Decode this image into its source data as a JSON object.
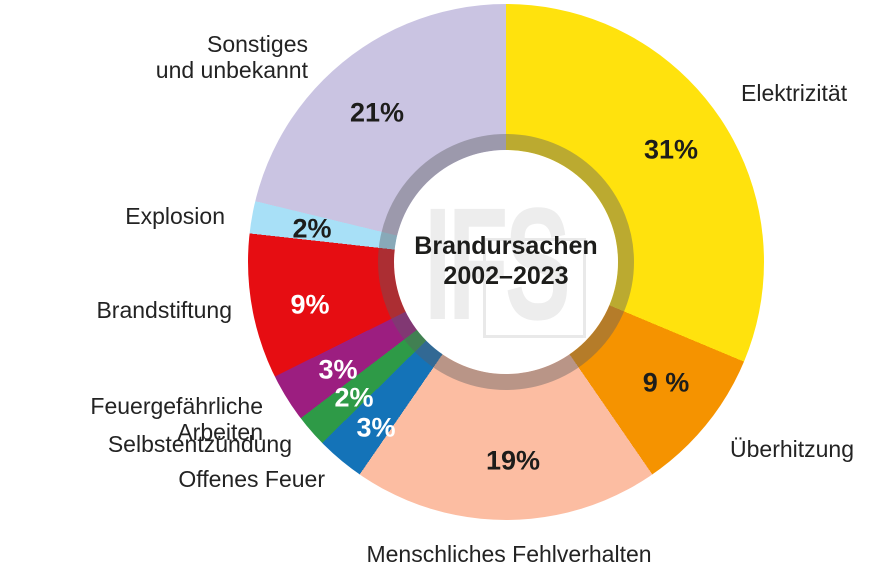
{
  "chart_data": {
    "type": "pie",
    "style": "donut",
    "title": "Brandursachen",
    "subtitle": "2002–2023",
    "watermark": "IFS",
    "legend_position": "labels-around-chart",
    "start_angle_deg": 0,
    "direction": "clockwise",
    "segments": [
      {
        "label": "Elektrizität",
        "value": 31,
        "pct_label": "31%",
        "color": "#FFE20D",
        "pct_text": "dark"
      },
      {
        "label": "Überhitzung",
        "value": 9,
        "pct_label": "9 %",
        "color": "#F59300",
        "pct_text": "dark"
      },
      {
        "label": "Menschliches Fehlverhalten",
        "value": 19,
        "pct_label": "19%",
        "color": "#FCBDA2",
        "pct_text": "dark"
      },
      {
        "label": "Offenes Feuer",
        "value": 3,
        "pct_label": "3%",
        "color": "#1473B8",
        "pct_text": "light"
      },
      {
        "label": "Selbstentzündung",
        "value": 2,
        "pct_label": "2%",
        "color": "#2E9A47",
        "pct_text": "light"
      },
      {
        "label": "Feuergefährliche Arbeiten",
        "value": 3,
        "pct_label": "3%",
        "color": "#9C1E80",
        "pct_text": "light"
      },
      {
        "label": "Brandstiftung",
        "value": 9,
        "pct_label": "9%",
        "color": "#E60D12",
        "pct_text": "light"
      },
      {
        "label": "Explosion",
        "value": 2,
        "pct_label": "2%",
        "color": "#A8E0F7",
        "pct_text": "dark"
      },
      {
        "label": "Sonstiges\nund unbekannt",
        "value": 21,
        "pct_label": "21%",
        "color": "#CAC4E2",
        "pct_text": "dark"
      }
    ]
  }
}
